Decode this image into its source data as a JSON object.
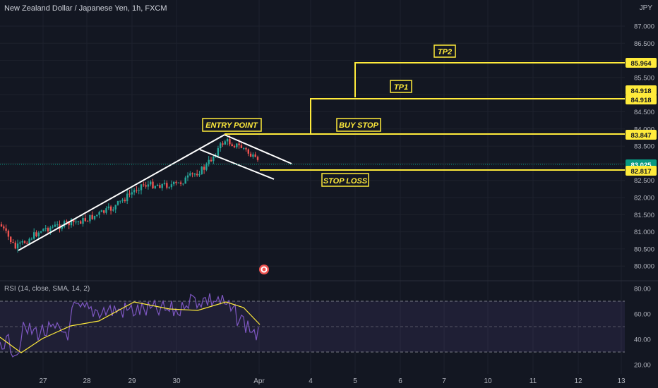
{
  "header": {
    "symbol_title": "New Zealand Dollar / Japanese Yen, 1h, FXCM",
    "currency": "JPY"
  },
  "price_axis": {
    "ticks": [
      "87.000",
      "86.500",
      "86.000",
      "85.500",
      "85.000",
      "84.500",
      "84.000",
      "83.500",
      "83.000",
      "82.500",
      "82.000",
      "81.500",
      "81.000",
      "80.500",
      "80.000"
    ]
  },
  "price_badges": {
    "tp2": "85.964",
    "tp1_a": "84.918",
    "tp1_b": "84.918",
    "buy_stop": "83.847",
    "current": "83.025",
    "stop_loss": "82.817"
  },
  "annotations": {
    "tp2": "TP2",
    "tp1": "TP1",
    "entry_point": "ENTRY POINT",
    "buy_stop": "BUY STOP",
    "stop_loss": "STOP LOSS"
  },
  "rsi": {
    "label": "RSI (14, close, SMA, 14, 2)",
    "ticks": [
      "80.00",
      "60.00",
      "40.00",
      "20.00"
    ]
  },
  "time_axis": {
    "ticks": [
      "27",
      "28",
      "29",
      "30",
      "Apr",
      "4",
      "5",
      "6",
      "7",
      "10",
      "11",
      "12",
      "13"
    ]
  },
  "colors": {
    "background": "#131722",
    "up_candle": "#26a69a",
    "down_candle": "#ef5350",
    "levels": "#ffeb3b",
    "rsi_line": "#7e57c2",
    "rsi_ma": "#ffeb3b",
    "current_price": "#089981"
  },
  "chart_data": {
    "type": "candlestick",
    "y_range": [
      79.6,
      87.4
    ],
    "levels": {
      "tp2": 85.964,
      "tp1": 84.918,
      "buy_stop": 83.847,
      "stop_loss": 82.817,
      "current": 83.025
    },
    "rsi_range": [
      15,
      82
    ],
    "rsi_band": [
      30,
      70
    ],
    "rsi_mid": 50
  }
}
